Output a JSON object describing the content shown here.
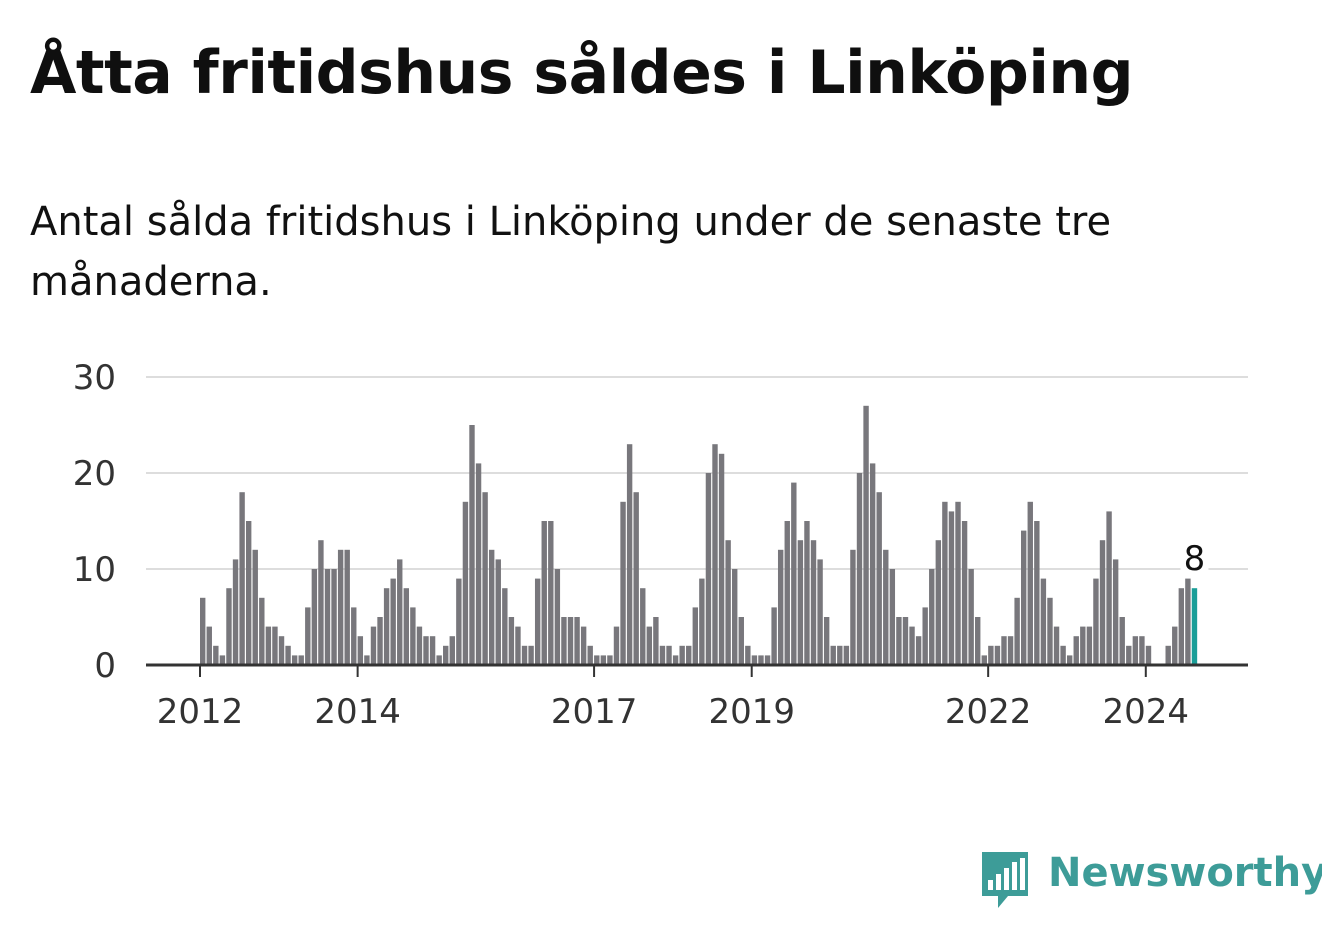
{
  "title": "Åtta fritidshus såldes i Linköping",
  "subtitle": "Antal sålda fritidshus i Linköping under de senaste tre månaderna.",
  "brand": {
    "name": "Newsworthy",
    "icon": "bar-chart-speech-bubble-icon"
  },
  "colors": {
    "bar": "#78777c",
    "highlight": "#1a9e98",
    "grid": "#dddddd",
    "axis": "#333333",
    "brand": "#3d9c98"
  },
  "chart_data": {
    "type": "bar",
    "title": "Antal sålda fritidshus i Linköping under de senaste tre månaderna.",
    "xlabel": "",
    "ylabel": "",
    "ylim": [
      0,
      30
    ],
    "yticks": [
      "0",
      "10",
      "20",
      "30"
    ],
    "xticks": [
      "2012",
      "2014",
      "2017",
      "2019",
      "2022",
      "2024"
    ],
    "grid": true,
    "legend": "none",
    "values": [
      7,
      4,
      2,
      1,
      8,
      11,
      18,
      15,
      12,
      7,
      4,
      4,
      3,
      2,
      1,
      1,
      6,
      10,
      13,
      10,
      10,
      12,
      12,
      6,
      3,
      1,
      4,
      5,
      8,
      9,
      11,
      8,
      6,
      4,
      3,
      3,
      1,
      2,
      3,
      9,
      17,
      25,
      21,
      18,
      12,
      11,
      8,
      5,
      4,
      2,
      2,
      9,
      15,
      15,
      10,
      5,
      5,
      5,
      4,
      2,
      1,
      1,
      1,
      4,
      17,
      23,
      18,
      8,
      4,
      5,
      2,
      2,
      1,
      2,
      2,
      6,
      9,
      20,
      23,
      22,
      13,
      10,
      5,
      2,
      1,
      1,
      1,
      6,
      12,
      15,
      19,
      13,
      15,
      13,
      11,
      5,
      2,
      2,
      2,
      12,
      20,
      27,
      21,
      18,
      12,
      10,
      5,
      5,
      4,
      3,
      6,
      10,
      13,
      17,
      16,
      17,
      15,
      10,
      5,
      1,
      2,
      2,
      3,
      3,
      7,
      14,
      17,
      15,
      9,
      7,
      4,
      2,
      1,
      3,
      4,
      4,
      9,
      13,
      16,
      11,
      5,
      2,
      3,
      3,
      2,
      0,
      0,
      2,
      4,
      8,
      9,
      8
    ],
    "highlight": {
      "label": "8",
      "value": 8
    }
  }
}
